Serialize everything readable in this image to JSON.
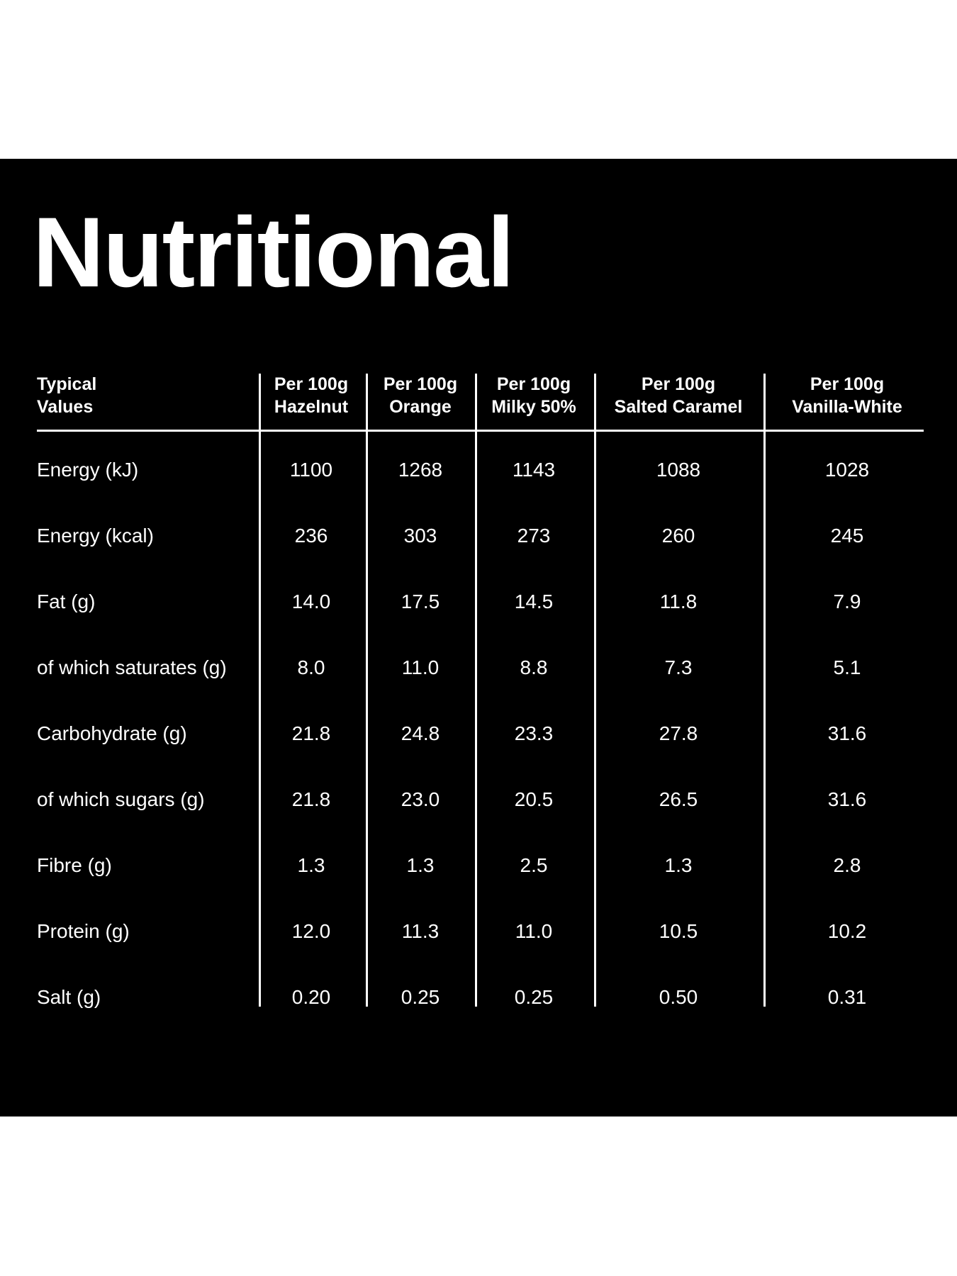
{
  "title": "Nutritional",
  "table": {
    "row_header": [
      "Typical",
      "Values"
    ],
    "columns": [
      {
        "line1": "Per 100g",
        "line2": "Hazelnut"
      },
      {
        "line1": "Per 100g",
        "line2": "Orange"
      },
      {
        "line1": "Per 100g",
        "line2": "Milky 50%"
      },
      {
        "line1": "Per 100g",
        "line2": "Salted Caramel"
      },
      {
        "line1": "Per 100g",
        "line2": "Vanilla-White"
      }
    ],
    "rows": [
      {
        "label": "Energy (kJ)",
        "values": [
          "1100",
          "1268",
          "1143",
          "1088",
          "1028"
        ]
      },
      {
        "label": "Energy (kcal)",
        "values": [
          "236",
          "303",
          "273",
          "260",
          "245"
        ]
      },
      {
        "label": "Fat (g)",
        "values": [
          "14.0",
          "17.5",
          "14.5",
          "11.8",
          "7.9"
        ]
      },
      {
        "label": "of which saturates (g)",
        "values": [
          "8.0",
          "11.0",
          "8.8",
          "7.3",
          "5.1"
        ]
      },
      {
        "label": "Carbohydrate (g)",
        "values": [
          "21.8",
          "24.8",
          "23.3",
          "27.8",
          "31.6"
        ]
      },
      {
        "label": "of which sugars (g)",
        "values": [
          "21.8",
          "23.0",
          "20.5",
          "26.5",
          "31.6"
        ]
      },
      {
        "label": "Fibre (g)",
        "values": [
          "1.3",
          "1.3",
          "2.5",
          "1.3",
          "2.8"
        ]
      },
      {
        "label": "Protein (g)",
        "values": [
          "12.0",
          "11.3",
          "11.0",
          "10.5",
          "10.2"
        ]
      },
      {
        "label": "Salt (g)",
        "values": [
          "0.20",
          "0.25",
          "0.25",
          "0.50",
          "0.31"
        ]
      }
    ]
  }
}
